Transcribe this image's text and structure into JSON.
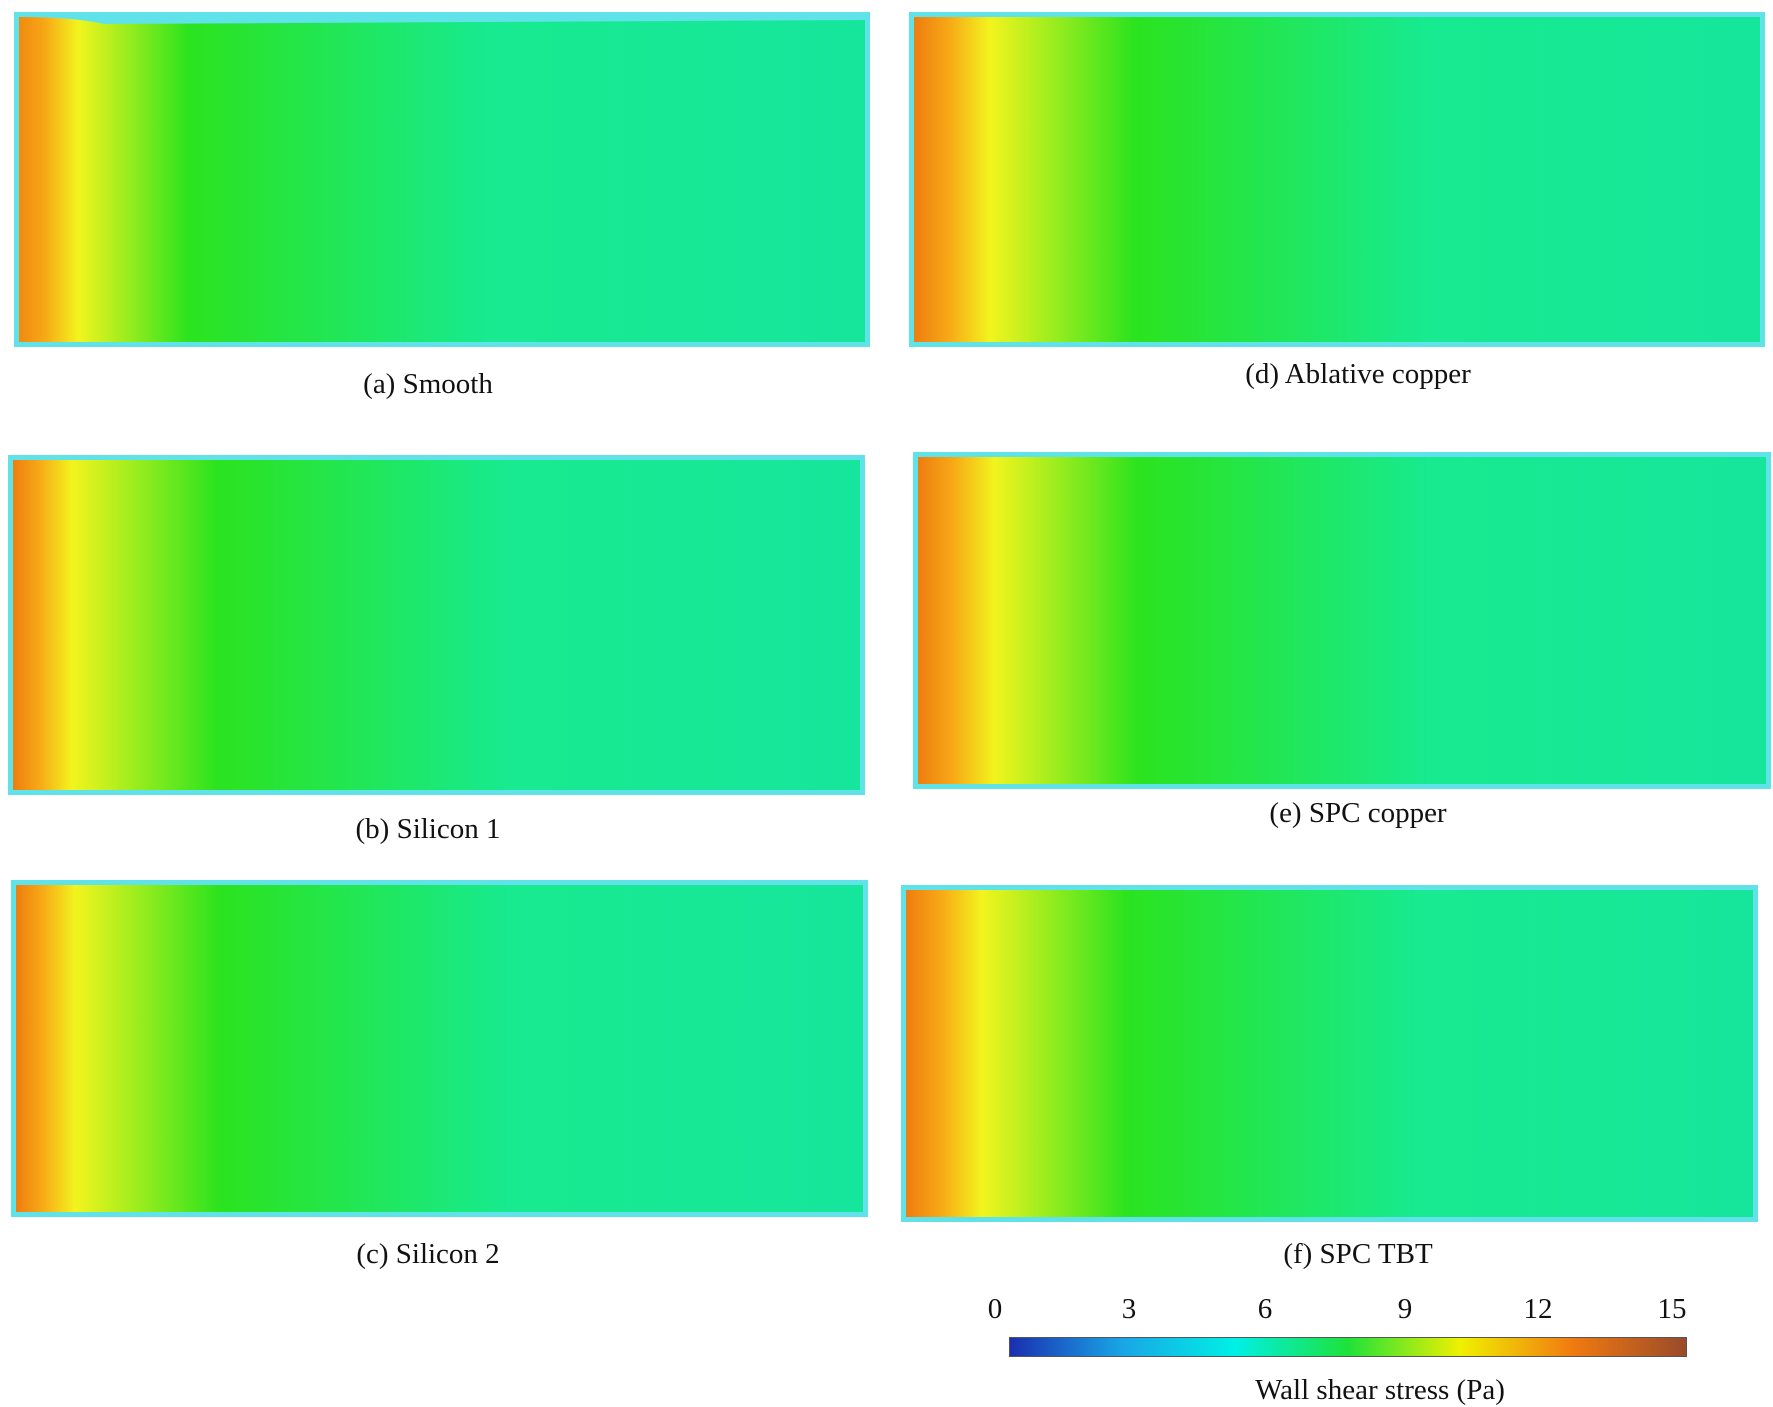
{
  "panels": [
    {
      "id": "a",
      "caption": "(a) Smooth"
    },
    {
      "id": "b",
      "caption": "(b) Silicon 1"
    },
    {
      "id": "c",
      "caption": "(c) Silicon 2"
    },
    {
      "id": "d",
      "caption": "(d) Ablative copper"
    },
    {
      "id": "e",
      "caption": "(e) SPC copper"
    },
    {
      "id": "f",
      "caption": "(f) SPC TBT"
    }
  ],
  "colorbar": {
    "title": "Wall shear stress (Pa)",
    "ticks": [
      "0",
      "3",
      "6",
      "9",
      "12",
      "15"
    ],
    "range": [
      0,
      15
    ],
    "colors": [
      "#1a2fb0",
      "#19a6e6",
      "#00f0e6",
      "#1ee23a",
      "#f0f000",
      "#f07a10",
      "#9a4a2a"
    ]
  },
  "contour_colors": {
    "edge": "#f08a10",
    "orange": "#f7a716",
    "yellow": "#f2f41e",
    "green": "#29e51d",
    "teal": "#17ea8f",
    "border": "#5fe3e8"
  }
}
